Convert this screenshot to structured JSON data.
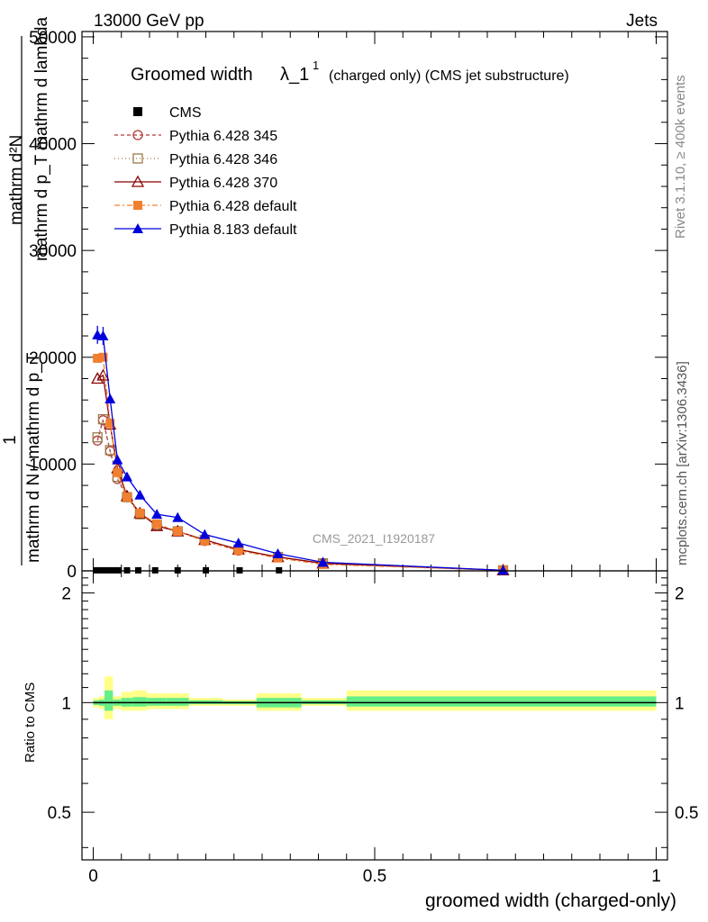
{
  "header": {
    "left": "13000 GeV pp",
    "right": "Jets",
    "rivet": "Rivet 3.1.10, ≥ 400k events",
    "mcplots": "mcplots.cern.ch [arXiv:1306.3436]",
    "analysis": "CMS_2021_I1920187"
  },
  "chart_data": [
    {
      "type": "line",
      "title": "Groomed widthλ_1¹",
      "title_main": "Groomed width",
      "title_symbol": "λ_1",
      "title_sup": "1",
      "title_suffix": "(charged only) (CMS jet substructure)",
      "ylabel_line1": "mathrm d²N",
      "ylabel_line2": "mathrm d p_T mathrm d lambda",
      "ylabel_line3": "1",
      "ylabel_line4": "mathrm d N / mathrm d p_T",
      "xlim": [
        -0.02,
        1.02
      ],
      "ylim": [
        0,
        50500
      ],
      "yticks": [
        0,
        10000,
        20000,
        30000,
        40000,
        50000
      ],
      "ytick_labels": [
        "0",
        "10000",
        "20000",
        "30000",
        "40000",
        "50000"
      ],
      "legend_position": "top-left",
      "series": [
        {
          "name": "CMS",
          "color": "#000000",
          "marker": "square",
          "dash": "none",
          "x": [
            0.005,
            0.015,
            0.025,
            0.035,
            0.045,
            0.06,
            0.08,
            0.11,
            0.15,
            0.2,
            0.26,
            0.33,
            0.73
          ],
          "y": [
            50,
            50,
            50,
            50,
            50,
            50,
            50,
            50,
            50,
            50,
            50,
            50,
            50
          ]
        },
        {
          "name": "Pythia 6.428 345",
          "color": "#b03a3a",
          "marker": "circle-open",
          "dash": "4,3",
          "x": [
            0.0075,
            0.0175,
            0.03,
            0.043,
            0.06,
            0.083,
            0.113,
            0.15,
            0.198,
            0.258,
            0.328,
            0.408,
            0.728
          ],
          "y": [
            12200,
            14100,
            11200,
            8600,
            6900,
            5300,
            4300,
            3700,
            2800,
            1900,
            1300,
            700,
            50
          ]
        },
        {
          "name": "Pythia 6.428 346",
          "color": "#9a7d4a",
          "marker": "square-open",
          "dash": "1,3",
          "x": [
            0.0075,
            0.0175,
            0.03,
            0.043,
            0.06,
            0.083,
            0.113,
            0.15,
            0.198,
            0.258,
            0.328,
            0.408,
            0.728
          ],
          "y": [
            12500,
            14200,
            11300,
            8800,
            6900,
            5300,
            4300,
            3700,
            2900,
            2000,
            1300,
            700,
            50
          ]
        },
        {
          "name": "Pythia 6.428 370",
          "color": "#8b0000",
          "marker": "triangle-open",
          "dash": "none",
          "x": [
            0.0075,
            0.0175,
            0.03,
            0.043,
            0.06,
            0.083,
            0.113,
            0.15,
            0.198,
            0.258,
            0.328,
            0.408,
            0.728
          ],
          "y": [
            18000,
            18300,
            13700,
            9600,
            7000,
            5400,
            4200,
            3700,
            2900,
            2000,
            1300,
            700,
            50
          ]
        },
        {
          "name": "Pythia 6.428 default",
          "color": "#f08030",
          "marker": "square-filled",
          "dash": "6,3,2,3",
          "x": [
            0.0075,
            0.0175,
            0.03,
            0.043,
            0.06,
            0.083,
            0.113,
            0.15,
            0.198,
            0.258,
            0.328,
            0.408,
            0.728
          ],
          "y": [
            19900,
            20000,
            13800,
            9200,
            6900,
            5400,
            4400,
            3700,
            2800,
            1900,
            1200,
            600,
            50
          ]
        },
        {
          "name": "Pythia 8.183 default",
          "color": "#0000dd",
          "marker": "triangle-filled",
          "dash": "none",
          "x": [
            0.0075,
            0.0175,
            0.03,
            0.043,
            0.06,
            0.083,
            0.113,
            0.15,
            0.198,
            0.258,
            0.328,
            0.408,
            0.728
          ],
          "y": [
            22100,
            22000,
            16100,
            10400,
            8800,
            7100,
            5300,
            5000,
            3400,
            2600,
            1600,
            800,
            50
          ]
        }
      ]
    },
    {
      "type": "line",
      "title": "",
      "xlabel": "groomed width (charged-only)",
      "ylabel": "Ratio to CMS",
      "xlim": [
        -0.02,
        1.02
      ],
      "ylim": [
        0.37,
        2.3
      ],
      "xticks": [
        0,
        0.5,
        1
      ],
      "xtick_labels": [
        "0",
        "0.5",
        "1"
      ],
      "yticks": [
        0.5,
        1,
        2
      ],
      "ytick_labels": [
        "0.5",
        "1",
        "2"
      ],
      "ytick_labels_right": [
        "0.5",
        "1",
        "2"
      ],
      "reference_line": 1,
      "bands": [
        {
          "x0": 0.0,
          "x1": 0.01,
          "yellow": [
            0.97,
            1.03
          ],
          "green": [
            0.985,
            1.015
          ]
        },
        {
          "x0": 0.01,
          "x1": 0.02,
          "yellow": [
            0.96,
            1.04
          ],
          "green": [
            0.98,
            1.02
          ]
        },
        {
          "x0": 0.02,
          "x1": 0.035,
          "yellow": [
            0.9,
            1.18
          ],
          "green": [
            0.95,
            1.08
          ]
        },
        {
          "x0": 0.035,
          "x1": 0.05,
          "yellow": [
            0.96,
            1.04
          ],
          "green": [
            0.98,
            1.02
          ]
        },
        {
          "x0": 0.05,
          "x1": 0.07,
          "yellow": [
            0.95,
            1.07
          ],
          "green": [
            0.975,
            1.03
          ]
        },
        {
          "x0": 0.07,
          "x1": 0.095,
          "yellow": [
            0.95,
            1.08
          ],
          "green": [
            0.975,
            1.035
          ]
        },
        {
          "x0": 0.095,
          "x1": 0.13,
          "yellow": [
            0.96,
            1.06
          ],
          "green": [
            0.98,
            1.03
          ]
        },
        {
          "x0": 0.13,
          "x1": 0.17,
          "yellow": [
            0.96,
            1.06
          ],
          "green": [
            0.98,
            1.03
          ]
        },
        {
          "x0": 0.17,
          "x1": 0.23,
          "yellow": [
            0.98,
            1.03
          ],
          "green": [
            0.99,
            1.015
          ]
        },
        {
          "x0": 0.23,
          "x1": 0.29,
          "yellow": [
            0.98,
            1.02
          ],
          "green": [
            0.99,
            1.01
          ]
        },
        {
          "x0": 0.29,
          "x1": 0.37,
          "yellow": [
            0.95,
            1.06
          ],
          "green": [
            0.97,
            1.03
          ]
        },
        {
          "x0": 0.37,
          "x1": 0.45,
          "yellow": [
            0.98,
            1.03
          ],
          "green": [
            0.99,
            1.015
          ]
        },
        {
          "x0": 0.45,
          "x1": 1.0,
          "yellow": [
            0.95,
            1.08
          ],
          "green": [
            0.975,
            1.04
          ]
        }
      ]
    }
  ]
}
